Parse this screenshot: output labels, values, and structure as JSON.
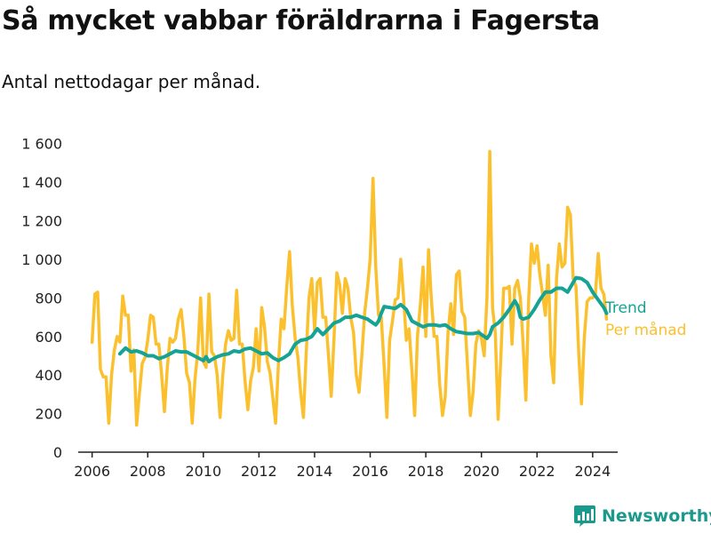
{
  "title": "Så mycket vabbar föräldrarna i Fagersta",
  "subtitle": "Antal nettodagar per månad.",
  "brand": {
    "name": "Newsworthy",
    "color": "#1a9a8c",
    "icon": "bar-chart-logo-icon"
  },
  "chart_data": {
    "type": "line",
    "xlim": [
      2005.5,
      2024.9
    ],
    "ylim": [
      0,
      1700
    ],
    "x_ticks": [
      2006,
      2008,
      2010,
      2012,
      2014,
      2016,
      2018,
      2020,
      2022,
      2024
    ],
    "x_tick_labels": [
      "2006",
      "2008",
      "2010",
      "2012",
      "2014",
      "2016",
      "2018",
      "2020",
      "2022",
      "2024"
    ],
    "y_ticks": [
      0,
      200,
      400,
      600,
      800,
      1000,
      1200,
      1400,
      1600
    ],
    "y_tick_labels": [
      "0",
      "200",
      "400",
      "600",
      "800",
      "1 000",
      "1 200",
      "1 400",
      "1 600"
    ],
    "grid": false,
    "legend": "right-end-labels",
    "series": [
      {
        "name": "Per månad",
        "color": "#fbc02d",
        "points": [
          [
            2006.0,
            570
          ],
          [
            2006.1,
            820
          ],
          [
            2006.2,
            830
          ],
          [
            2006.3,
            430
          ],
          [
            2006.4,
            390
          ],
          [
            2006.5,
            390
          ],
          [
            2006.6,
            150
          ],
          [
            2006.7,
            400
          ],
          [
            2006.8,
            530
          ],
          [
            2006.9,
            600
          ],
          [
            2007.0,
            570
          ],
          [
            2007.1,
            810
          ],
          [
            2007.2,
            710
          ],
          [
            2007.3,
            710
          ],
          [
            2007.4,
            420
          ],
          [
            2007.5,
            530
          ],
          [
            2007.6,
            140
          ],
          [
            2007.7,
            300
          ],
          [
            2007.8,
            460
          ],
          [
            2007.9,
            490
          ],
          [
            2008.0,
            580
          ],
          [
            2008.1,
            710
          ],
          [
            2008.2,
            700
          ],
          [
            2008.3,
            560
          ],
          [
            2008.4,
            560
          ],
          [
            2008.5,
            400
          ],
          [
            2008.6,
            210
          ],
          [
            2008.7,
            430
          ],
          [
            2008.8,
            590
          ],
          [
            2008.9,
            570
          ],
          [
            2009.0,
            590
          ],
          [
            2009.1,
            690
          ],
          [
            2009.2,
            740
          ],
          [
            2009.3,
            600
          ],
          [
            2009.4,
            410
          ],
          [
            2009.5,
            360
          ],
          [
            2009.6,
            150
          ],
          [
            2009.7,
            380
          ],
          [
            2009.8,
            520
          ],
          [
            2009.9,
            800
          ],
          [
            2010.0,
            470
          ],
          [
            2010.1,
            440
          ],
          [
            2010.2,
            820
          ],
          [
            2010.3,
            520
          ],
          [
            2010.4,
            500
          ],
          [
            2010.5,
            400
          ],
          [
            2010.6,
            180
          ],
          [
            2010.7,
            400
          ],
          [
            2010.8,
            560
          ],
          [
            2010.9,
            630
          ],
          [
            2011.0,
            580
          ],
          [
            2011.1,
            590
          ],
          [
            2011.2,
            840
          ],
          [
            2011.3,
            560
          ],
          [
            2011.4,
            560
          ],
          [
            2011.5,
            370
          ],
          [
            2011.6,
            220
          ],
          [
            2011.7,
            370
          ],
          [
            2011.8,
            440
          ],
          [
            2011.9,
            640
          ],
          [
            2012.0,
            420
          ],
          [
            2012.1,
            750
          ],
          [
            2012.2,
            650
          ],
          [
            2012.3,
            470
          ],
          [
            2012.4,
            410
          ],
          [
            2012.5,
            280
          ],
          [
            2012.6,
            150
          ],
          [
            2012.7,
            460
          ],
          [
            2012.8,
            690
          ],
          [
            2012.9,
            640
          ],
          [
            2013.0,
            860
          ],
          [
            2013.1,
            1040
          ],
          [
            2013.2,
            760
          ],
          [
            2013.3,
            590
          ],
          [
            2013.4,
            490
          ],
          [
            2013.5,
            310
          ],
          [
            2013.6,
            180
          ],
          [
            2013.7,
            520
          ],
          [
            2013.8,
            800
          ],
          [
            2013.9,
            900
          ],
          [
            2014.0,
            630
          ],
          [
            2014.1,
            880
          ],
          [
            2014.2,
            900
          ],
          [
            2014.3,
            700
          ],
          [
            2014.4,
            700
          ],
          [
            2014.5,
            500
          ],
          [
            2014.6,
            290
          ],
          [
            2014.7,
            600
          ],
          [
            2014.8,
            930
          ],
          [
            2014.9,
            870
          ],
          [
            2015.0,
            720
          ],
          [
            2015.1,
            900
          ],
          [
            2015.2,
            850
          ],
          [
            2015.3,
            700
          ],
          [
            2015.4,
            620
          ],
          [
            2015.5,
            400
          ],
          [
            2015.6,
            310
          ],
          [
            2015.7,
            500
          ],
          [
            2015.8,
            720
          ],
          [
            2015.9,
            850
          ],
          [
            2016.0,
            1000
          ],
          [
            2016.1,
            1420
          ],
          [
            2016.2,
            960
          ],
          [
            2016.3,
            710
          ],
          [
            2016.4,
            700
          ],
          [
            2016.5,
            450
          ],
          [
            2016.6,
            180
          ],
          [
            2016.7,
            580
          ],
          [
            2016.8,
            680
          ],
          [
            2016.9,
            790
          ],
          [
            2017.0,
            800
          ],
          [
            2017.1,
            1000
          ],
          [
            2017.2,
            800
          ],
          [
            2017.3,
            580
          ],
          [
            2017.4,
            640
          ],
          [
            2017.5,
            420
          ],
          [
            2017.6,
            190
          ],
          [
            2017.7,
            600
          ],
          [
            2017.8,
            760
          ],
          [
            2017.9,
            960
          ],
          [
            2018.0,
            600
          ],
          [
            2018.1,
            1050
          ],
          [
            2018.2,
            790
          ],
          [
            2018.3,
            600
          ],
          [
            2018.4,
            600
          ],
          [
            2018.5,
            350
          ],
          [
            2018.6,
            190
          ],
          [
            2018.7,
            290
          ],
          [
            2018.8,
            620
          ],
          [
            2018.9,
            770
          ],
          [
            2019.0,
            610
          ],
          [
            2019.1,
            920
          ],
          [
            2019.2,
            940
          ],
          [
            2019.3,
            730
          ],
          [
            2019.4,
            700
          ],
          [
            2019.5,
            450
          ],
          [
            2019.6,
            190
          ],
          [
            2019.7,
            310
          ],
          [
            2019.8,
            560
          ],
          [
            2019.9,
            630
          ],
          [
            2020.0,
            590
          ],
          [
            2020.1,
            500
          ],
          [
            2020.2,
            800
          ],
          [
            2020.3,
            1560
          ],
          [
            2020.4,
            750
          ],
          [
            2020.5,
            620
          ],
          [
            2020.6,
            170
          ],
          [
            2020.7,
            500
          ],
          [
            2020.8,
            850
          ],
          [
            2020.9,
            850
          ],
          [
            2021.0,
            860
          ],
          [
            2021.1,
            560
          ],
          [
            2021.2,
            850
          ],
          [
            2021.3,
            890
          ],
          [
            2021.4,
            800
          ],
          [
            2021.5,
            560
          ],
          [
            2021.6,
            270
          ],
          [
            2021.7,
            800
          ],
          [
            2021.8,
            1080
          ],
          [
            2021.9,
            980
          ],
          [
            2022.0,
            1070
          ],
          [
            2022.1,
            920
          ],
          [
            2022.2,
            820
          ],
          [
            2022.3,
            710
          ],
          [
            2022.4,
            970
          ],
          [
            2022.5,
            500
          ],
          [
            2022.6,
            360
          ],
          [
            2022.7,
            900
          ],
          [
            2022.8,
            1080
          ],
          [
            2022.9,
            960
          ],
          [
            2023.0,
            980
          ],
          [
            2023.1,
            1270
          ],
          [
            2023.2,
            1230
          ],
          [
            2023.3,
            900
          ],
          [
            2023.4,
            860
          ],
          [
            2023.5,
            510
          ],
          [
            2023.6,
            250
          ],
          [
            2023.7,
            600
          ],
          [
            2023.8,
            780
          ],
          [
            2023.9,
            800
          ],
          [
            2024.0,
            800
          ],
          [
            2024.1,
            820
          ],
          [
            2024.2,
            1030
          ],
          [
            2024.3,
            850
          ],
          [
            2024.4,
            820
          ],
          [
            2024.5,
            690
          ]
        ]
      },
      {
        "name": "Trend",
        "color": "#14a394",
        "points": [
          [
            2007.0,
            510
          ],
          [
            2007.2,
            540
          ],
          [
            2007.4,
            520
          ],
          [
            2007.6,
            525
          ],
          [
            2007.8,
            515
          ],
          [
            2008.0,
            500
          ],
          [
            2008.2,
            500
          ],
          [
            2008.4,
            485
          ],
          [
            2008.6,
            495
          ],
          [
            2008.8,
            510
          ],
          [
            2009.0,
            525
          ],
          [
            2009.2,
            520
          ],
          [
            2009.4,
            520
          ],
          [
            2009.6,
            505
          ],
          [
            2009.8,
            490
          ],
          [
            2010.0,
            475
          ],
          [
            2010.1,
            495
          ],
          [
            2010.2,
            470
          ],
          [
            2010.3,
            480
          ],
          [
            2010.5,
            495
          ],
          [
            2010.7,
            505
          ],
          [
            2010.9,
            510
          ],
          [
            2011.1,
            525
          ],
          [
            2011.3,
            520
          ],
          [
            2011.5,
            535
          ],
          [
            2011.7,
            540
          ],
          [
            2011.9,
            525
          ],
          [
            2012.1,
            510
          ],
          [
            2012.3,
            515
          ],
          [
            2012.5,
            490
          ],
          [
            2012.7,
            475
          ],
          [
            2012.9,
            490
          ],
          [
            2013.1,
            510
          ],
          [
            2013.3,
            560
          ],
          [
            2013.5,
            580
          ],
          [
            2013.7,
            585
          ],
          [
            2013.9,
            600
          ],
          [
            2014.1,
            640
          ],
          [
            2014.3,
            610
          ],
          [
            2014.5,
            640
          ],
          [
            2014.7,
            670
          ],
          [
            2014.9,
            680
          ],
          [
            2015.1,
            700
          ],
          [
            2015.3,
            700
          ],
          [
            2015.5,
            710
          ],
          [
            2015.7,
            700
          ],
          [
            2015.9,
            690
          ],
          [
            2016.1,
            670
          ],
          [
            2016.2,
            660
          ],
          [
            2016.3,
            680
          ],
          [
            2016.4,
            720
          ],
          [
            2016.5,
            755
          ],
          [
            2016.7,
            750
          ],
          [
            2016.9,
            745
          ],
          [
            2017.1,
            765
          ],
          [
            2017.3,
            740
          ],
          [
            2017.5,
            680
          ],
          [
            2017.7,
            665
          ],
          [
            2017.9,
            650
          ],
          [
            2018.1,
            660
          ],
          [
            2018.3,
            660
          ],
          [
            2018.5,
            655
          ],
          [
            2018.7,
            660
          ],
          [
            2018.9,
            640
          ],
          [
            2019.1,
            625
          ],
          [
            2019.3,
            620
          ],
          [
            2019.5,
            615
          ],
          [
            2019.7,
            615
          ],
          [
            2019.9,
            620
          ],
          [
            2020.1,
            600
          ],
          [
            2020.2,
            590
          ],
          [
            2020.3,
            610
          ],
          [
            2020.4,
            650
          ],
          [
            2020.6,
            670
          ],
          [
            2020.8,
            700
          ],
          [
            2021.0,
            740
          ],
          [
            2021.2,
            785
          ],
          [
            2021.3,
            760
          ],
          [
            2021.4,
            700
          ],
          [
            2021.5,
            690
          ],
          [
            2021.7,
            700
          ],
          [
            2021.9,
            740
          ],
          [
            2022.1,
            790
          ],
          [
            2022.3,
            830
          ],
          [
            2022.5,
            830
          ],
          [
            2022.7,
            850
          ],
          [
            2022.9,
            850
          ],
          [
            2023.1,
            830
          ],
          [
            2023.3,
            880
          ],
          [
            2023.4,
            905
          ],
          [
            2023.6,
            900
          ],
          [
            2023.8,
            880
          ],
          [
            2024.0,
            830
          ],
          [
            2024.2,
            790
          ],
          [
            2024.4,
            750
          ],
          [
            2024.5,
            720
          ]
        ]
      }
    ]
  }
}
